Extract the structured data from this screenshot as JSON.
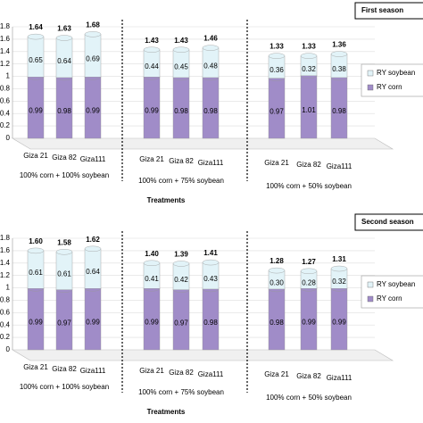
{
  "chart_data": [
    {
      "type": "bar",
      "stacked": true,
      "title": "First season",
      "categories": [
        "Giza 21",
        "Giza 82",
        "Giza111",
        "Giza 21",
        "Giza 82",
        "Giza111",
        "Giza 21",
        "Giza 82",
        "Giza111"
      ],
      "groups": [
        "100% corn + 100% soybean",
        "100% corn + 75% soybean",
        "100% corn + 50% soybean"
      ],
      "x_label": "Treatments",
      "series": [
        {
          "name": "RY corn",
          "color": "#a08cc8",
          "values": [
            0.99,
            0.98,
            0.99,
            0.99,
            0.98,
            0.98,
            0.97,
            1.01,
            0.98
          ],
          "value_labels": [
            "0.99",
            "0.98",
            "0.99",
            "0.99",
            "0.98",
            "0.98",
            "0.97",
            "1.01",
            "0.98"
          ]
        },
        {
          "name": "RY soybean",
          "color": "#e2f3f8",
          "values": [
            0.65,
            0.64,
            0.69,
            0.44,
            0.45,
            0.48,
            0.36,
            0.32,
            0.38
          ],
          "value_labels": [
            "0.65",
            "0.64",
            "0.69",
            "0.44",
            "0.45",
            "0.48",
            "0.36",
            "0.32",
            "0.38"
          ]
        }
      ],
      "total_labels": [
        "1.64",
        "1.63",
        "1.68",
        "1.43",
        "1.43",
        "1.46",
        "1.33",
        "1.33",
        "1.36"
      ],
      "ylim": [
        0,
        1.8
      ],
      "yticks": [
        0,
        0.2,
        0.4,
        0.6,
        0.8,
        1,
        1.2,
        1.4,
        1.6,
        1.8
      ],
      "grid": true
    },
    {
      "type": "bar",
      "stacked": true,
      "title": "Second season",
      "categories": [
        "Giza 21",
        "Giza 82",
        "Giza111",
        "Giza 21",
        "Giza 82",
        "Giza111",
        "Giza 21",
        "Giza 82",
        "Giza111"
      ],
      "groups": [
        "100% corn + 100% soybean",
        "100% corn + 75% soybean",
        "100% corn + 50% soybean"
      ],
      "x_label": "Treatments",
      "series": [
        {
          "name": "RY corn",
          "color": "#a08cc8",
          "values": [
            0.99,
            0.97,
            0.99,
            0.99,
            0.97,
            0.98,
            0.98,
            0.99,
            0.99
          ],
          "value_labels": [
            "0.99",
            "0.97",
            "0.99",
            "0.99",
            "0.97",
            "0.98",
            "0.98",
            "0.99",
            "0.99"
          ]
        },
        {
          "name": "RY soybean",
          "color": "#e2f3f8",
          "values": [
            0.61,
            0.61,
            0.64,
            0.41,
            0.42,
            0.43,
            0.3,
            0.28,
            0.32
          ],
          "value_labels": [
            "0.61",
            "0.61",
            "0.64",
            "0.41",
            "0.42",
            "0.43",
            "0.30",
            "0.28",
            "0.32"
          ]
        }
      ],
      "total_labels": [
        "1.60",
        "1.58",
        "1.62",
        "1.40",
        "1.39",
        "1.41",
        "1.28",
        "1.27",
        "1.31"
      ],
      "ylim": [
        0,
        1.8
      ],
      "yticks": [
        0,
        0.2,
        0.4,
        0.6,
        0.8,
        1,
        1.2,
        1.4,
        1.6,
        1.8
      ],
      "grid": true
    }
  ]
}
